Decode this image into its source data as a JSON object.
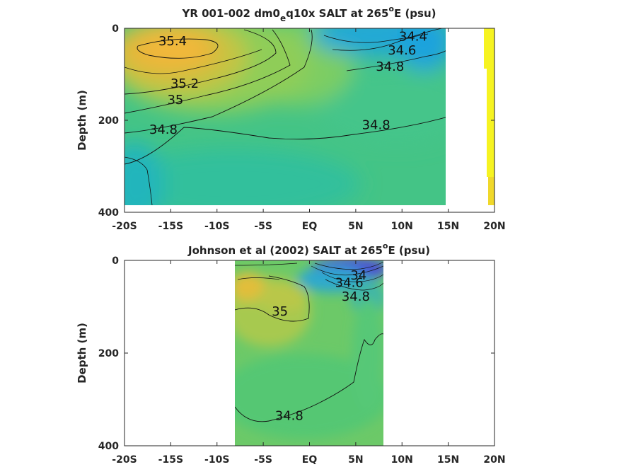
{
  "chart_data": [
    {
      "type": "heatmap",
      "title": "YR 001-002 dm0_eq10x SALT at 265°E (psu)",
      "title_parts": [
        "YR 001-002 dm0",
        "e",
        "q10x SALT at 265",
        "o",
        "E (psu)"
      ],
      "xlabel": "",
      "ylabel": "Depth (m)",
      "x_ticks": [
        "-20S",
        "-15S",
        "-10S",
        "-5S",
        "EQ",
        "5N",
        "10N",
        "15N",
        "20N"
      ],
      "x_tick_values": [
        -20,
        -15,
        -10,
        -5,
        0,
        5,
        10,
        15,
        20
      ],
      "y_ticks": [
        "0",
        "200",
        "400"
      ],
      "y_tick_values": [
        0,
        200,
        400
      ],
      "xlim": [
        -20,
        20
      ],
      "ylim": [
        400,
        0
      ],
      "contour_labels": [
        {
          "text": "35.4",
          "x": -14.8,
          "y": 28
        },
        {
          "text": "35.2",
          "x": -13.5,
          "y": 120
        },
        {
          "text": "35",
          "x": -14.5,
          "y": 155
        },
        {
          "text": "34.8",
          "x": -15.8,
          "y": 220
        },
        {
          "text": "34.8",
          "x": 7.2,
          "y": 210
        },
        {
          "text": "34.8",
          "x": 8.7,
          "y": 83
        },
        {
          "text": "34.6",
          "x": 10.0,
          "y": 48
        },
        {
          "text": "34.4",
          "x": 11.2,
          "y": 18
        }
      ],
      "colors": {
        "high": "#f2b53a",
        "mid": "#4bc57e",
        "low": "#2db8b8",
        "fresh": "#1fa6dc",
        "edge": "#f5f520"
      }
    },
    {
      "type": "heatmap",
      "title": "Johnson et al (2002) SALT at 265°E (psu)",
      "title_parts": [
        "Johnson et al (2002) SALT at 265",
        "o",
        "E (psu)"
      ],
      "xlabel": "",
      "ylabel": "Depth (m)",
      "x_ticks": [
        "-20S",
        "-15S",
        "-10S",
        "-5S",
        "EQ",
        "5N",
        "10N",
        "15N",
        "20N"
      ],
      "x_tick_values": [
        -20,
        -15,
        -10,
        -5,
        0,
        5,
        10,
        15,
        20
      ],
      "y_ticks": [
        "0",
        "200",
        "400"
      ],
      "y_tick_values": [
        0,
        200,
        400
      ],
      "xlim": [
        -20,
        20
      ],
      "ylim": [
        400,
        0
      ],
      "data_xrange": [
        -8,
        8
      ],
      "contour_labels": [
        {
          "text": "34",
          "x": 5.3,
          "y": 32
        },
        {
          "text": "34.6",
          "x": 4.3,
          "y": 48
        },
        {
          "text": "34.8",
          "x": 5.0,
          "y": 78
        },
        {
          "text": "35",
          "x": -3.2,
          "y": 110
        },
        {
          "text": "34.8",
          "x": -2.2,
          "y": 335
        }
      ],
      "colors": {
        "high": "#e9c33b",
        "mid": "#6fca6a",
        "low": "#47c37a",
        "fresh": "#4443d8"
      }
    }
  ]
}
